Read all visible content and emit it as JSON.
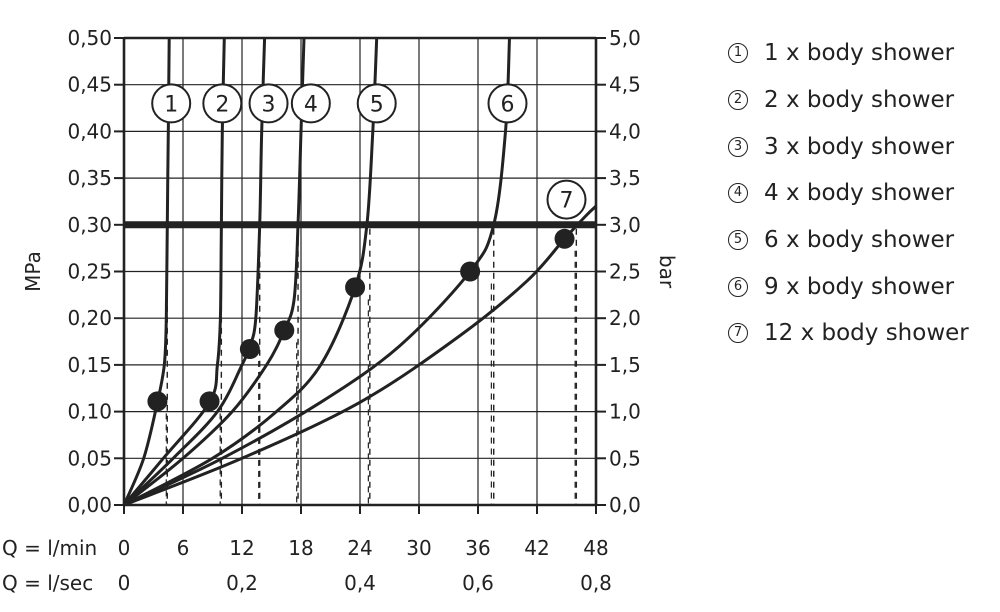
{
  "chart_data": {
    "type": "line",
    "ylabel_left": "MPa",
    "ylabel_right": "bar",
    "xlabel_lmin": "Q = l/min",
    "xlabel_lsec": "Q = l/sec",
    "xlim": [
      0,
      48
    ],
    "ylim": [
      0,
      0.5
    ],
    "x_ticks": [
      "0",
      "6",
      "12",
      "18",
      "24",
      "30",
      "36",
      "42",
      "48"
    ],
    "x_ticks_sec": [
      "0",
      "0,2",
      "0,4",
      "0,6",
      "0,8"
    ],
    "y_ticks_left": [
      "0,00",
      "0,05",
      "0,10",
      "0,15",
      "0,20",
      "0,25",
      "0,30",
      "0,35",
      "0,40",
      "0,45",
      "0,50"
    ],
    "y_ticks_right": [
      "0,0",
      "0,5",
      "1,0",
      "1,5",
      "2,0",
      "2,5",
      "3,0",
      "3,5",
      "4,0",
      "4,5",
      "5,0"
    ],
    "grid": true,
    "reference_line": {
      "y": 0.3
    },
    "series": [
      {
        "name": "1",
        "points": [
          [
            0,
            0
          ],
          [
            2,
            0.05
          ],
          [
            3.4,
            0.11
          ],
          [
            4.1,
            0.15
          ],
          [
            4.3,
            0.2
          ],
          [
            4.4,
            0.3
          ],
          [
            4.5,
            0.4
          ],
          [
            4.6,
            0.5
          ]
        ],
        "marker": [
          3.4,
          0.111
        ],
        "drop_x": 4.4
      },
      {
        "name": "2",
        "points": [
          [
            0,
            0
          ],
          [
            4,
            0.05
          ],
          [
            8.7,
            0.11
          ],
          [
            9.5,
            0.15
          ],
          [
            9.8,
            0.2
          ],
          [
            9.9,
            0.3
          ],
          [
            10,
            0.4
          ],
          [
            10.2,
            0.5
          ]
        ],
        "marker": [
          8.7,
          0.111
        ],
        "drop_x": 9.9
      },
      {
        "name": "3",
        "points": [
          [
            0,
            0
          ],
          [
            5,
            0.05
          ],
          [
            9.5,
            0.1
          ],
          [
            12,
            0.15
          ],
          [
            12.8,
            0.17
          ],
          [
            13.4,
            0.2
          ],
          [
            13.8,
            0.3
          ],
          [
            14,
            0.4
          ],
          [
            14.3,
            0.5
          ]
        ],
        "marker": [
          12.8,
          0.167
        ],
        "drop_x": 13.8
      },
      {
        "name": "4",
        "points": [
          [
            0,
            0
          ],
          [
            6,
            0.05
          ],
          [
            11,
            0.1
          ],
          [
            14.5,
            0.15
          ],
          [
            16.3,
            0.187
          ],
          [
            17.3,
            0.22
          ],
          [
            17.7,
            0.3
          ],
          [
            18,
            0.4
          ],
          [
            18.3,
            0.5
          ]
        ],
        "marker": [
          16.3,
          0.187
        ],
        "drop_x": 17.7
      },
      {
        "name": "5",
        "points": [
          [
            0,
            0
          ],
          [
            9,
            0.05
          ],
          [
            15.5,
            0.1
          ],
          [
            20,
            0.15
          ],
          [
            23.5,
            0.233
          ],
          [
            24.7,
            0.3
          ],
          [
            25.3,
            0.4
          ],
          [
            25.7,
            0.5
          ]
        ],
        "marker": [
          23.5,
          0.233
        ],
        "drop_x": 25.0
      },
      {
        "name": "6",
        "points": [
          [
            0,
            0
          ],
          [
            10,
            0.05
          ],
          [
            20,
            0.11
          ],
          [
            28,
            0.17
          ],
          [
            35.2,
            0.25
          ],
          [
            37.6,
            0.3
          ],
          [
            38.8,
            0.4
          ],
          [
            39.2,
            0.5
          ]
        ],
        "marker": [
          35.2,
          0.25
        ],
        "drop_x": 37.6
      },
      {
        "name": "7",
        "points": [
          [
            0,
            0
          ],
          [
            12,
            0.05
          ],
          [
            24,
            0.11
          ],
          [
            34,
            0.18
          ],
          [
            41,
            0.24
          ],
          [
            44.8,
            0.285
          ],
          [
            47,
            0.31
          ],
          [
            48,
            0.32
          ]
        ],
        "marker": [
          44.8,
          0.285
        ],
        "drop_x": 46.0
      }
    ],
    "legend": [
      {
        "num": "1",
        "text": "1 x body shower"
      },
      {
        "num": "2",
        "text": "2 x body shower"
      },
      {
        "num": "3",
        "text": "3 x body shower"
      },
      {
        "num": "4",
        "text": "4 x body shower"
      },
      {
        "num": "5",
        "text": "6 x body shower"
      },
      {
        "num": "6",
        "text": "9 x body shower"
      },
      {
        "num": "7",
        "text": "12 x body shower"
      }
    ],
    "legend_position": "right"
  }
}
